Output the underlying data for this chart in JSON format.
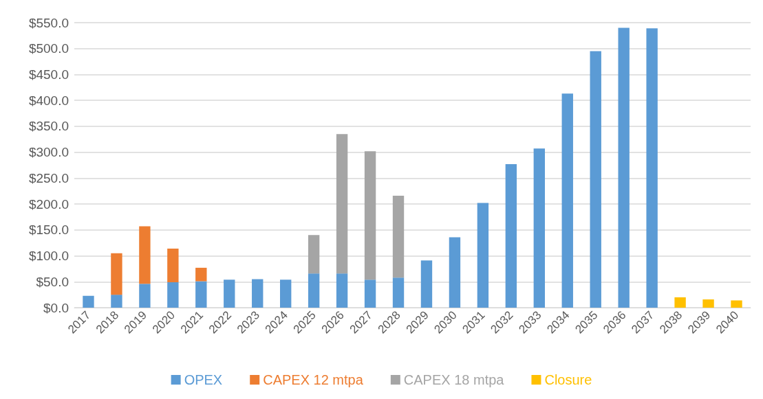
{
  "chart_data": {
    "type": "bar",
    "stacked": true,
    "categories": [
      "2017",
      "2018",
      "2019",
      "2020",
      "2021",
      "2022",
      "2023",
      "2024",
      "2025",
      "2026",
      "2027",
      "2028",
      "2029",
      "2030",
      "2031",
      "2032",
      "2033",
      "2034",
      "2035",
      "2036",
      "2037",
      "2038",
      "2039",
      "2040"
    ],
    "series": [
      {
        "name": "OPEX",
        "color": "#5b9bd5",
        "values": [
          23,
          25,
          46,
          49,
          51,
          54,
          55,
          54,
          66,
          66,
          54,
          58,
          91,
          136,
          202,
          277,
          307,
          413,
          495,
          540,
          539,
          null,
          null,
          null
        ]
      },
      {
        "name": "CAPEX 12 mtpa",
        "color": "#ed7d31",
        "values": [
          null,
          80,
          111,
          65,
          26,
          null,
          null,
          null,
          null,
          null,
          null,
          null,
          null,
          null,
          null,
          null,
          null,
          null,
          null,
          null,
          null,
          null,
          null,
          null
        ]
      },
      {
        "name": "CAPEX 18 mtpa",
        "color": "#a5a5a5",
        "values": [
          null,
          null,
          null,
          null,
          null,
          null,
          null,
          null,
          74,
          269,
          248,
          158,
          null,
          null,
          null,
          null,
          null,
          null,
          null,
          null,
          null,
          null,
          null,
          null
        ]
      },
      {
        "name": "Closure",
        "color": "#ffc000",
        "values": [
          null,
          null,
          null,
          null,
          null,
          null,
          null,
          null,
          null,
          null,
          null,
          null,
          null,
          null,
          null,
          null,
          null,
          null,
          null,
          null,
          null,
          20,
          16,
          14
        ]
      }
    ],
    "ylim": [
      0,
      550
    ],
    "yticks": [
      {
        "value": 0,
        "label": "$0.0"
      },
      {
        "value": 50,
        "label": "$50.0"
      },
      {
        "value": 100,
        "label": "$100.0"
      },
      {
        "value": 150,
        "label": "$150.0"
      },
      {
        "value": 200,
        "label": "$200.0"
      },
      {
        "value": 250,
        "label": "$250.0"
      },
      {
        "value": 300,
        "label": "$300.0"
      },
      {
        "value": 350,
        "label": "$350.0"
      },
      {
        "value": 400,
        "label": "$400.0"
      },
      {
        "value": 450,
        "label": "$450.0"
      },
      {
        "value": 500,
        "label": "$500.0"
      },
      {
        "value": 550,
        "label": "$550.0"
      }
    ],
    "grid": "y",
    "legend": "bottom"
  }
}
